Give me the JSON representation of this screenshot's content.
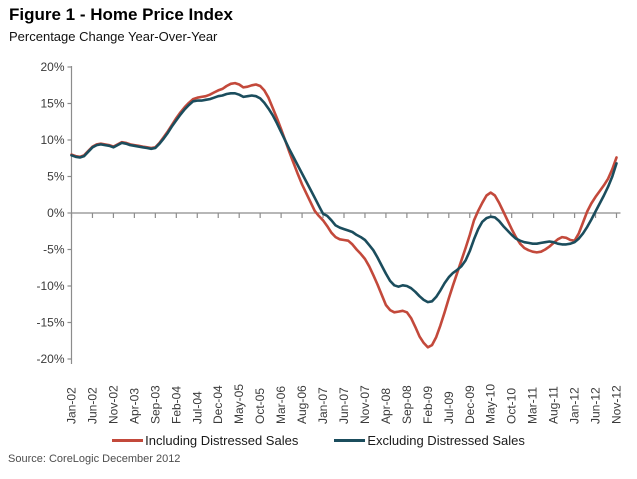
{
  "header": {
    "title": "Figure 1 - Home Price Index",
    "subtitle": "Percentage Change Year-Over-Year"
  },
  "source": "Source: CoreLogic December 2012",
  "legend": [
    {
      "label": "Including Distressed Sales",
      "color": "#c3493b"
    },
    {
      "label": "Excluding Distressed Sales",
      "color": "#1b4d5d"
    }
  ],
  "chart_data": {
    "type": "line",
    "title": "Figure 1 - Home Price Index",
    "subtitle": "Percentage Change Year-Over-Year",
    "x_frequency": "monthly",
    "x_start": "Jan-02",
    "x_end": "Nov-12",
    "x_tick_step_months": 5,
    "x_tick_labels": [
      "Jan-02",
      "Jun-02",
      "Nov-02",
      "Apr-03",
      "Sep-03",
      "Feb-04",
      "Jul-04",
      "Dec-04",
      "May-05",
      "Oct-05",
      "Mar-06",
      "Aug-06",
      "Jan-07",
      "Jun-07",
      "Nov-07",
      "Apr-08",
      "Sep-08",
      "Feb-09",
      "Jul-09",
      "Dec-09",
      "May-10",
      "Oct-10",
      "Mar-11",
      "Aug-11",
      "Jan-12",
      "Jun-12",
      "Nov-12"
    ],
    "y_tick_labels": [
      "20%",
      "15%",
      "10%",
      "5%",
      "0%",
      "-5%",
      "-10%",
      "-15%",
      "-20%"
    ],
    "ylim": [
      -20,
      20
    ],
    "grid": "zero-line-only",
    "legend_position": "bottom",
    "axis_color": "#8c8c8c",
    "series": [
      {
        "name": "Including Distressed Sales",
        "color": "#c3493b",
        "values": [
          8.0,
          7.8,
          7.7,
          7.9,
          8.5,
          9.1,
          9.4,
          9.5,
          9.4,
          9.3,
          9.1,
          9.4,
          9.7,
          9.6,
          9.4,
          9.3,
          9.2,
          9.1,
          9.0,
          8.9,
          9.0,
          9.6,
          10.4,
          11.2,
          12.1,
          13.0,
          13.8,
          14.5,
          15.1,
          15.6,
          15.8,
          15.9,
          16.0,
          16.2,
          16.5,
          16.8,
          17.0,
          17.4,
          17.7,
          17.8,
          17.6,
          17.2,
          17.3,
          17.5,
          17.6,
          17.4,
          16.8,
          15.8,
          14.4,
          13.0,
          11.5,
          9.9,
          8.3,
          6.8,
          5.3,
          3.9,
          2.7,
          1.5,
          0.3,
          -0.4,
          -1.0,
          -1.8,
          -2.7,
          -3.3,
          -3.6,
          -3.7,
          -3.8,
          -4.3,
          -5.0,
          -5.6,
          -6.3,
          -7.3,
          -8.5,
          -9.8,
          -11.2,
          -12.6,
          -13.3,
          -13.6,
          -13.5,
          -13.4,
          -13.6,
          -14.4,
          -15.6,
          -16.9,
          -17.8,
          -18.4,
          -18.1,
          -17.0,
          -15.4,
          -13.6,
          -11.7,
          -9.9,
          -8.2,
          -6.5,
          -4.8,
          -3.0,
          -1.0,
          0.3,
          1.4,
          2.4,
          2.8,
          2.4,
          1.4,
          0.2,
          -1.0,
          -2.2,
          -3.3,
          -4.2,
          -4.8,
          -5.1,
          -5.3,
          -5.4,
          -5.3,
          -5.0,
          -4.6,
          -4.1,
          -3.6,
          -3.3,
          -3.4,
          -3.7,
          -3.8,
          -2.8,
          -1.3,
          0.2,
          1.3,
          2.2,
          3.0,
          3.8,
          4.7,
          6.0,
          7.6
        ]
      },
      {
        "name": "Excluding Distressed Sales",
        "color": "#1b4d5d",
        "values": [
          7.9,
          7.7,
          7.6,
          7.8,
          8.4,
          9.0,
          9.3,
          9.4,
          9.3,
          9.2,
          9.0,
          9.3,
          9.6,
          9.5,
          9.3,
          9.2,
          9.1,
          9.0,
          8.9,
          8.8,
          8.9,
          9.5,
          10.2,
          11.0,
          11.9,
          12.7,
          13.5,
          14.2,
          14.8,
          15.3,
          15.4,
          15.4,
          15.5,
          15.6,
          15.8,
          16.0,
          16.1,
          16.3,
          16.4,
          16.4,
          16.2,
          15.9,
          16.0,
          16.1,
          16.0,
          15.7,
          15.1,
          14.3,
          13.4,
          12.3,
          11.1,
          9.9,
          8.7,
          7.6,
          6.5,
          5.4,
          4.3,
          3.2,
          2.1,
          1.0,
          -0.1,
          -0.4,
          -1.0,
          -1.7,
          -2.0,
          -2.2,
          -2.4,
          -2.6,
          -3.0,
          -3.3,
          -3.7,
          -4.4,
          -5.1,
          -6.1,
          -7.2,
          -8.3,
          -9.3,
          -9.9,
          -10.1,
          -9.9,
          -10.0,
          -10.3,
          -10.8,
          -11.4,
          -11.9,
          -12.2,
          -12.1,
          -11.5,
          -10.6,
          -9.6,
          -8.8,
          -8.2,
          -7.8,
          -7.3,
          -6.5,
          -5.2,
          -3.6,
          -2.2,
          -1.2,
          -0.7,
          -0.5,
          -0.6,
          -1.1,
          -1.8,
          -2.4,
          -3.0,
          -3.5,
          -3.8,
          -4.0,
          -4.1,
          -4.2,
          -4.2,
          -4.1,
          -4.0,
          -3.9,
          -4.0,
          -4.2,
          -4.3,
          -4.3,
          -4.2,
          -4.0,
          -3.5,
          -2.8,
          -1.9,
          -0.9,
          0.2,
          1.3,
          2.4,
          3.6,
          5.0,
          6.8
        ]
      }
    ]
  }
}
